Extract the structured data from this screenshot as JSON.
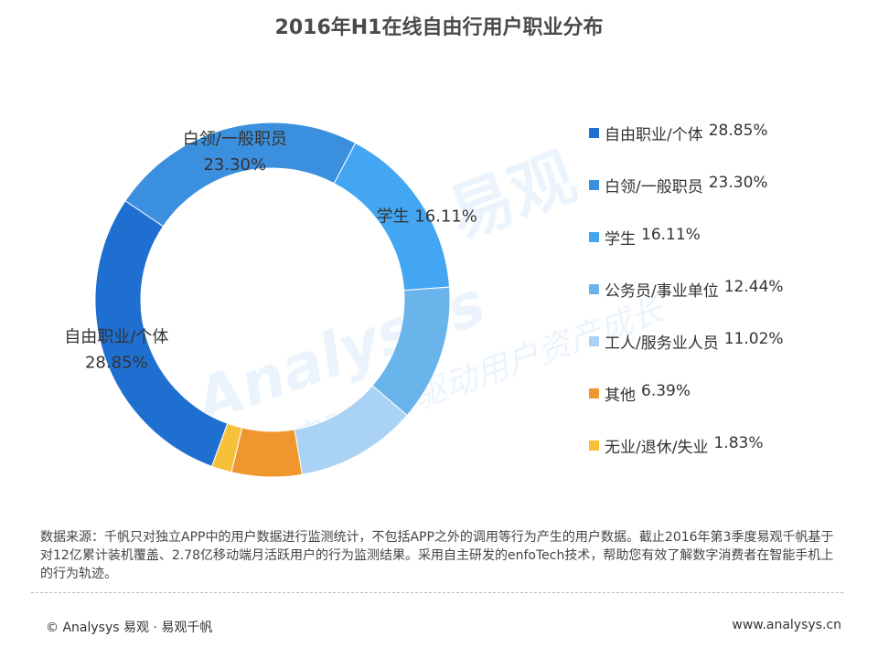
{
  "chart_data": {
    "type": "pie",
    "title": "2016年H1在线自由行用户职业分布",
    "variant": "donut",
    "legend_position": "right",
    "categories": [
      "自由职业/个体",
      "白领/一般职员",
      "学生",
      "公务员/事业单位",
      "工人/服务业人员",
      "其他",
      "无业/退休/失业"
    ],
    "values": [
      28.85,
      23.3,
      16.11,
      12.44,
      11.02,
      6.39,
      1.83
    ],
    "value_labels": [
      "28.85%",
      "23.30%",
      "16.11%",
      "12.44%",
      "11.02%",
      "6.39%",
      "1.83%"
    ],
    "colors": [
      "#1f6fd0",
      "#3a8fdf",
      "#43a6f2",
      "#6ab4ec",
      "#a9d2f5",
      "#f0962f",
      "#f6c13a"
    ],
    "shown_slice_labels": [
      0,
      1,
      2
    ]
  },
  "watermark": {
    "brand": "Analysys",
    "brand_cn": "易观",
    "tagline": "实时分析驱动用户资产成长"
  },
  "source_note": "数据来源：千帆只对独立APP中的用户数据进行监测统计，不包括APP之外的调用等行为产生的用户数据。截止2016年第3季度易观千帆基于对12亿累计装机覆盖、2.78亿移动端月活跃用户的行为监测结果。采用自主研发的enfoTech技术，帮助您有效了解数字消费者在智能手机上的行为轨迹。",
  "footer": {
    "copyright": "© Analysys 易观 · 易观千帆",
    "website": "www.analysys.cn"
  }
}
